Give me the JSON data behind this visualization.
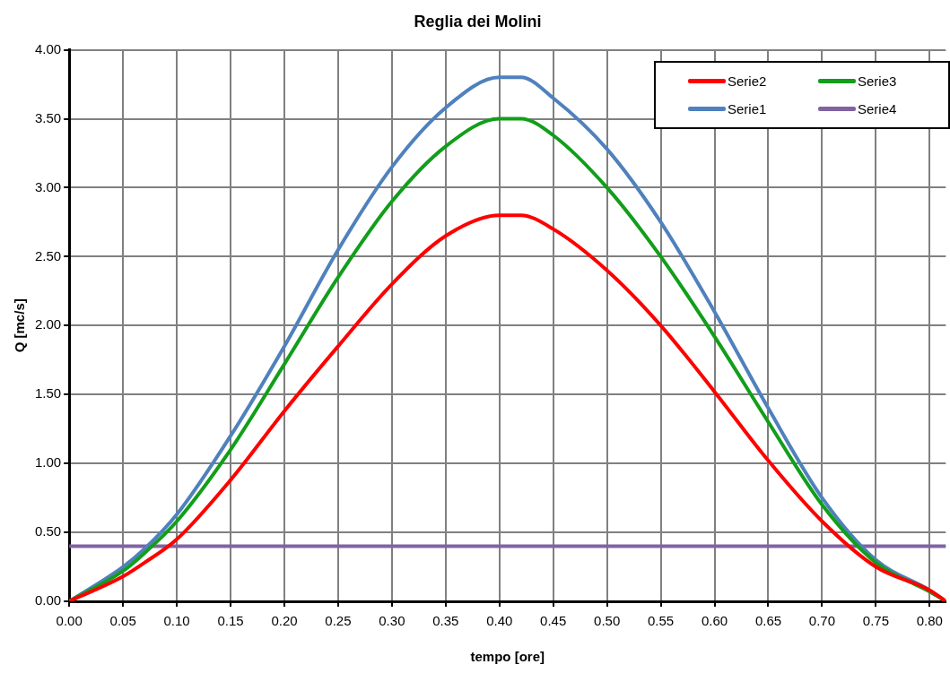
{
  "chart_data": {
    "type": "line",
    "title": "Reglia dei Molini",
    "xlabel": "tempo [ore]",
    "ylabel": "Q [mc/s]",
    "x": [
      0,
      0.05,
      0.07,
      0.1,
      0.15,
      0.2,
      0.25,
      0.3,
      0.35,
      0.4,
      0.42,
      0.45,
      0.5,
      0.55,
      0.6,
      0.65,
      0.7,
      0.75,
      0.8,
      0.815
    ],
    "series": [
      {
        "name": "Serie2",
        "color": "#ff0000",
        "values": [
          0,
          0.18,
          0.28,
          0.45,
          0.88,
          1.38,
          1.85,
          2.3,
          2.65,
          2.8,
          2.8,
          2.7,
          2.4,
          2.0,
          1.52,
          1.02,
          0.58,
          0.25,
          0.08,
          0
        ]
      },
      {
        "name": "Serie3",
        "color": "#129e1a",
        "values": [
          0,
          0.22,
          0.35,
          0.58,
          1.1,
          1.72,
          2.35,
          2.9,
          3.3,
          3.5,
          3.5,
          3.38,
          3.0,
          2.5,
          1.92,
          1.3,
          0.7,
          0.28,
          0.07,
          0
        ]
      },
      {
        "name": "Serie1",
        "color": "#4f81bd",
        "values": [
          0,
          0.25,
          0.38,
          0.63,
          1.2,
          1.85,
          2.55,
          3.15,
          3.58,
          3.8,
          3.8,
          3.65,
          3.28,
          2.75,
          2.1,
          1.4,
          0.75,
          0.3,
          0.08,
          0
        ]
      },
      {
        "name": "Serie4",
        "color": "#8064a2",
        "values": [
          0.4,
          0.4,
          0.4,
          0.4,
          0.4,
          0.4,
          0.4,
          0.4,
          0.4,
          0.4,
          0.4,
          0.4,
          0.4,
          0.4,
          0.4,
          0.4,
          0.4,
          0.4,
          0.4,
          0.4
        ]
      }
    ],
    "xlim": [
      0,
      0.815
    ],
    "xticks": [
      {
        "value": 0,
        "label": "0.00"
      },
      {
        "value": 0.05,
        "label": "0.05"
      },
      {
        "value": 0.1,
        "label": "0.10"
      },
      {
        "value": 0.15,
        "label": "0.15"
      },
      {
        "value": 0.2,
        "label": "0.20"
      },
      {
        "value": 0.25,
        "label": "0.25"
      },
      {
        "value": 0.3,
        "label": "0.30"
      },
      {
        "value": 0.35,
        "label": "0.35"
      },
      {
        "value": 0.4,
        "label": "0.40"
      },
      {
        "value": 0.45,
        "label": "0.45"
      },
      {
        "value": 0.5,
        "label": "0.50"
      },
      {
        "value": 0.55,
        "label": "0.55"
      },
      {
        "value": 0.6,
        "label": "0.60"
      },
      {
        "value": 0.65,
        "label": "0.65"
      },
      {
        "value": 0.7,
        "label": "0.70"
      },
      {
        "value": 0.75,
        "label": "0.75"
      },
      {
        "value": 0.8,
        "label": "0.80"
      }
    ],
    "ylim": [
      0,
      4
    ],
    "yticks": [
      {
        "value": 0,
        "label": "0.00"
      },
      {
        "value": 0.5,
        "label": "0.50"
      },
      {
        "value": 1,
        "label": "1.00"
      },
      {
        "value": 1.5,
        "label": "1.50"
      },
      {
        "value": 2,
        "label": "2.00"
      },
      {
        "value": 2.5,
        "label": "2.50"
      },
      {
        "value": 3,
        "label": "3.00"
      },
      {
        "value": 3.5,
        "label": "3.50"
      },
      {
        "value": 4,
        "label": "4.00"
      }
    ],
    "grid": true,
    "legend": "top right",
    "marker": "none",
    "line_style": "solid"
  }
}
